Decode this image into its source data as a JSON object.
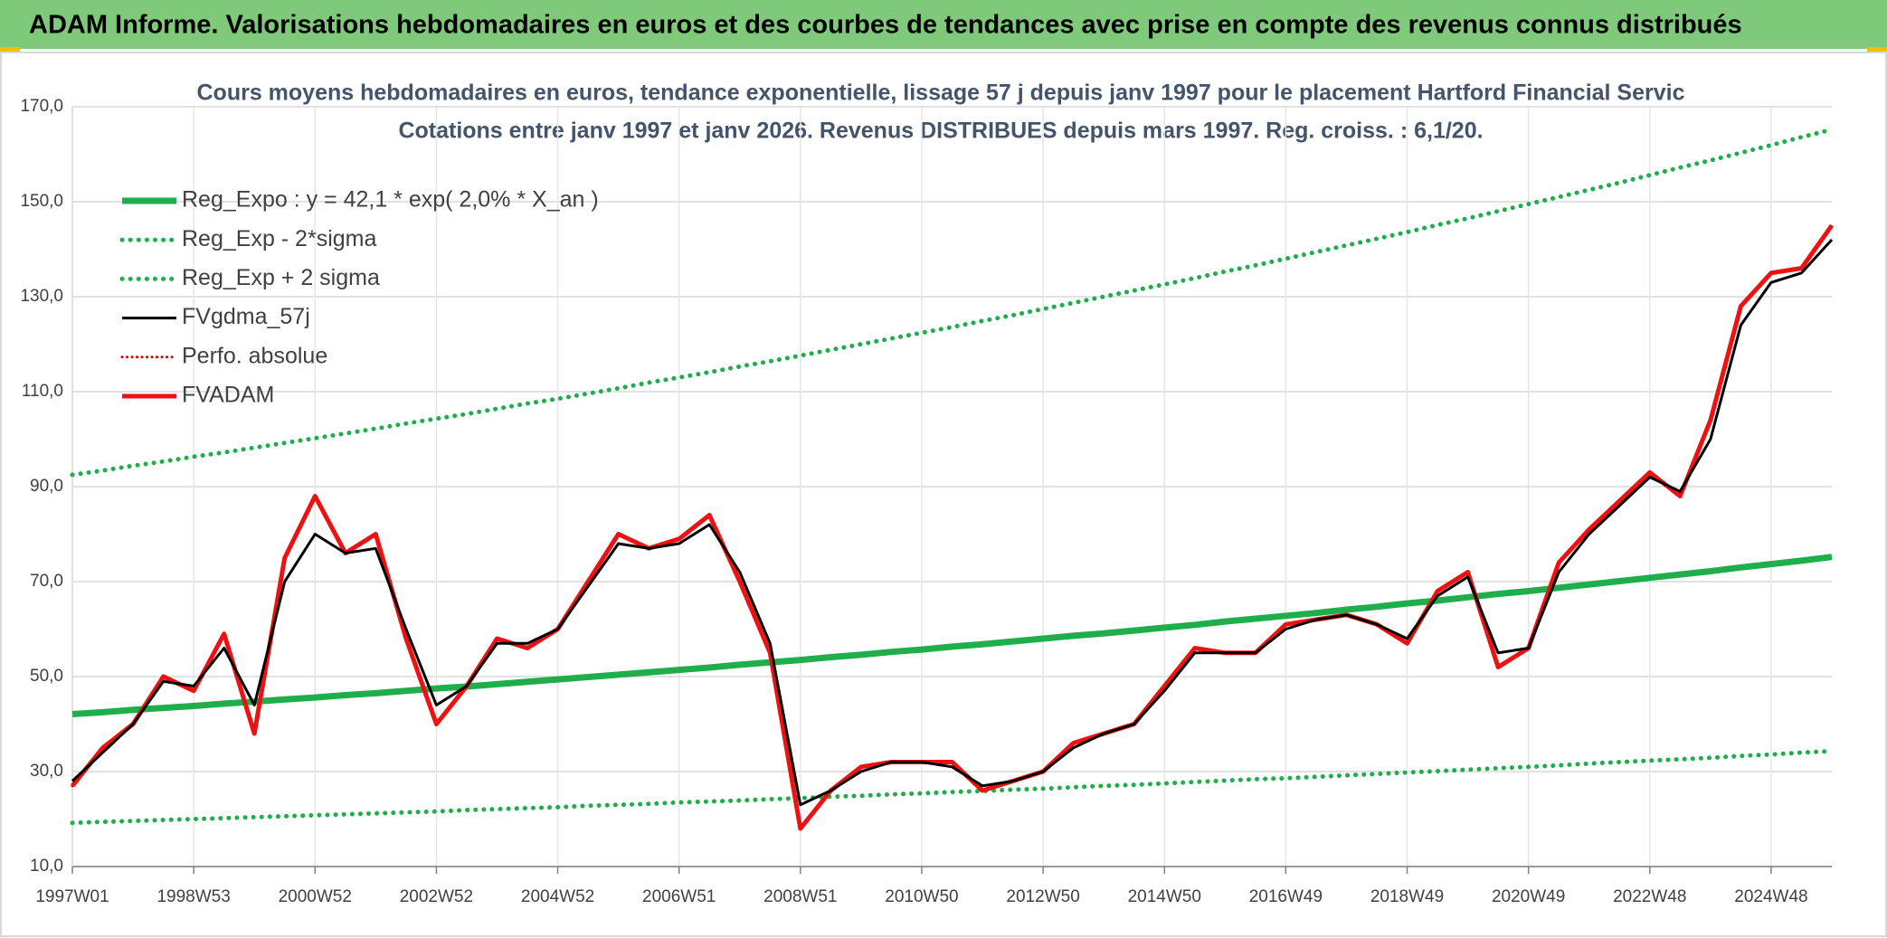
{
  "header": {
    "title": "ADAM Informe. Valorisations hebdomadaires en euros et des courbes de tendances avec prise en compte des revenus connus distribués"
  },
  "chart_data": {
    "type": "line",
    "title": "Cours moyens hebdomadaires en euros, tendance exponentielle, lissage 57 j depuis janv 1997 pour le placement Hartford Financial Servic",
    "subtitle": "Cotations entre janv 1997 et janv 2026. Revenus DISTRIBUES depuis mars 1997. Reg. croiss. : 6,1/20.",
    "categories": [
      "1997W01",
      null,
      null,
      null,
      "1998W53",
      null,
      null,
      null,
      "2000W52",
      null,
      null,
      null,
      "2002W52",
      null,
      null,
      null,
      "2004W52",
      null,
      null,
      null,
      "2006W51",
      null,
      null,
      null,
      "2008W51",
      null,
      null,
      null,
      "2010W50",
      null,
      null,
      null,
      "2012W50",
      null,
      null,
      null,
      "2014W50",
      null,
      null,
      null,
      "2016W49",
      null,
      null,
      null,
      "2018W49",
      null,
      null,
      null,
      "2020W49",
      null,
      null,
      null,
      "2022W48",
      null,
      null,
      null,
      "2024W48",
      null,
      null
    ],
    "ylim": [
      10,
      170
    ],
    "yticks": [
      {
        "value": 10,
        "label": "10,0"
      },
      {
        "value": 30,
        "label": "30,0"
      },
      {
        "value": 50,
        "label": "50,0"
      },
      {
        "value": 70,
        "label": "70,0"
      },
      {
        "value": 90,
        "label": "90,0"
      },
      {
        "value": 110,
        "label": "110,0"
      },
      {
        "value": 130,
        "label": "130,0"
      },
      {
        "value": 150,
        "label": "150,0"
      },
      {
        "value": 170,
        "label": "170,0"
      }
    ],
    "grid": true,
    "legend": "top-left",
    "series": [
      {
        "name": "Reg_Expo : y = 42,1 * exp( 2,0% *  X_an )",
        "color": "#1fae4b",
        "line_style": "solid",
        "width": 7,
        "values": [
          42.1,
          42.5,
          43.0,
          43.4,
          43.8,
          44.3,
          44.7,
          45.2,
          45.6,
          46.1,
          46.5,
          47.0,
          47.5,
          47.9,
          48.4,
          48.9,
          49.4,
          49.9,
          50.4,
          50.9,
          51.4,
          51.9,
          52.5,
          53.0,
          53.5,
          54.1,
          54.6,
          55.2,
          55.7,
          56.3,
          56.8,
          57.4,
          58.0,
          58.6,
          59.1,
          59.7,
          60.3,
          60.9,
          61.6,
          62.2,
          62.8,
          63.4,
          64.1,
          64.7,
          65.4,
          66.0,
          66.7,
          67.4,
          68.0,
          68.7,
          69.4,
          70.1,
          70.8,
          71.5,
          72.2,
          73.0,
          73.7,
          74.4,
          75.2
        ]
      },
      {
        "name": "Reg_Exp - 2*sigma",
        "color": "#1fae4b",
        "line_style": "dotted",
        "width": 5,
        "values": [
          19.2,
          19.4,
          19.6,
          19.8,
          20.0,
          20.2,
          20.4,
          20.6,
          20.8,
          21.0,
          21.2,
          21.4,
          21.6,
          21.9,
          22.1,
          22.3,
          22.5,
          22.8,
          23.0,
          23.2,
          23.5,
          23.7,
          23.9,
          24.2,
          24.4,
          24.7,
          24.9,
          25.2,
          25.4,
          25.7,
          25.9,
          26.2,
          26.4,
          26.7,
          27.0,
          27.2,
          27.5,
          27.8,
          28.1,
          28.4,
          28.6,
          28.9,
          29.2,
          29.5,
          29.8,
          30.1,
          30.4,
          30.7,
          31.0,
          31.3,
          31.7,
          32.0,
          32.3,
          32.6,
          32.9,
          33.3,
          33.6,
          34.0,
          34.3
        ]
      },
      {
        "name": "Reg_Exp + 2 sigma",
        "color": "#1fae4b",
        "line_style": "dotted",
        "width": 5,
        "values": [
          92.5,
          93.4,
          94.4,
          95.3,
          96.3,
          97.2,
          98.2,
          99.2,
          100.2,
          101.2,
          102.2,
          103.3,
          104.3,
          105.3,
          106.4,
          107.5,
          108.5,
          109.6,
          110.7,
          111.9,
          113.0,
          114.1,
          115.3,
          116.4,
          117.6,
          118.8,
          120.0,
          121.2,
          122.4,
          123.6,
          124.9,
          126.1,
          127.4,
          128.7,
          130.0,
          131.3,
          132.6,
          133.9,
          135.3,
          136.6,
          138.0,
          139.4,
          140.8,
          142.2,
          143.6,
          145.1,
          146.5,
          148.0,
          149.5,
          151.0,
          152.5,
          154.0,
          155.6,
          157.2,
          158.7,
          160.3,
          161.9,
          163.6,
          165.2
        ]
      },
      {
        "name": "FVgdma_57j",
        "color": "#000000",
        "line_style": "solid",
        "width": 3,
        "values": [
          28,
          34,
          40,
          49,
          48,
          56,
          44,
          70,
          80,
          76,
          77,
          60,
          44,
          48,
          57,
          57,
          60,
          69,
          78,
          77,
          78,
          82,
          72,
          57,
          23,
          26,
          30,
          32,
          32,
          31,
          27,
          28,
          30,
          35,
          38,
          40,
          47,
          55,
          55,
          55,
          60,
          62,
          63,
          61,
          58,
          67,
          71,
          55,
          56,
          72,
          80,
          86,
          92,
          89,
          100,
          124,
          133,
          135,
          142
        ]
      },
      {
        "name": "Perfo. absolue",
        "color": "#e00000",
        "line_style": "dotted",
        "width": 3,
        "values": [
          27,
          35,
          40,
          50,
          47,
          59,
          38,
          75,
          88,
          76,
          80,
          58,
          40,
          48,
          58,
          56,
          60,
          70,
          80,
          77,
          79,
          84,
          70,
          55,
          18,
          26,
          31,
          32,
          32,
          32,
          26,
          28,
          30,
          36,
          38,
          40,
          48,
          56,
          55,
          55,
          61,
          62,
          63,
          61,
          57,
          68,
          72,
          52,
          56,
          74,
          81,
          87,
          93,
          88,
          104,
          128,
          135,
          136,
          145
        ]
      },
      {
        "name": "FVADAM",
        "color": "#ee1111",
        "line_style": "solid",
        "width": 5,
        "values": [
          27,
          35,
          40,
          50,
          47,
          59,
          38,
          75,
          88,
          76,
          80,
          58,
          40,
          48,
          58,
          56,
          60,
          70,
          80,
          77,
          79,
          84,
          70,
          55,
          18,
          26,
          31,
          32,
          32,
          32,
          26,
          28,
          30,
          36,
          38,
          40,
          48,
          56,
          55,
          55,
          61,
          62,
          63,
          61,
          57,
          68,
          72,
          52,
          56,
          74,
          81,
          87,
          93,
          88,
          104,
          128,
          135,
          136,
          145
        ]
      }
    ]
  }
}
